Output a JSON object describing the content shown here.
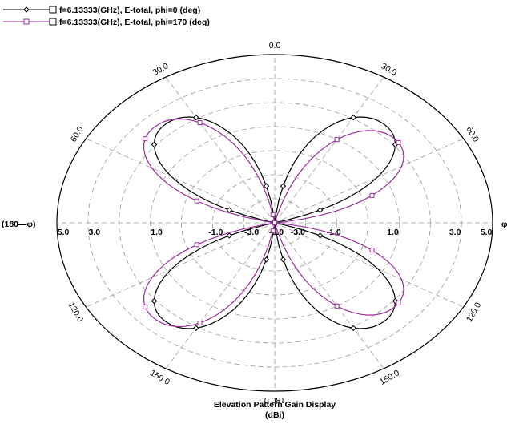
{
  "chart_data": {
    "type": "polar",
    "title": "Elevation Pattern Gain Display",
    "unit": "(dBi)",
    "radial_ticks": [
      "5.0",
      "3.0",
      "1.0",
      "-1.0",
      "-3.0",
      "-5.0"
    ],
    "angle_labels": [
      {
        "deg": 0,
        "text": "0.0"
      },
      {
        "deg": 30,
        "text": "30.0"
      },
      {
        "deg": 60,
        "text": "60.0"
      },
      {
        "deg": 120,
        "text": "120.0"
      },
      {
        "deg": 150,
        "text": "150.0"
      },
      {
        "deg": 180,
        "text": "180.0"
      },
      {
        "deg": -30,
        "text": "30.0"
      },
      {
        "deg": -60,
        "text": "60.0"
      },
      {
        "deg": -120,
        "text": "120.0"
      },
      {
        "deg": -150,
        "text": "150.0"
      }
    ],
    "left_axis_label": "(180—φ)",
    "right_axis_label": "φ",
    "series": [
      {
        "name": "f=6.13333(GHz), E-total, phi=0 (deg)",
        "color": "#000000",
        "marker": "diamond",
        "lobes": [
          {
            "center": 40,
            "peak": 3.8,
            "halfwidth": 35
          },
          {
            "center": 140,
            "peak": 3.8,
            "halfwidth": 35
          },
          {
            "center": -40,
            "peak": 3.8,
            "halfwidth": 35
          },
          {
            "center": -140,
            "peak": 3.8,
            "halfwidth": 35
          }
        ]
      },
      {
        "name": "f=6.13333(GHz), E-total, phi=170 (deg)",
        "color": "#9a2f9a",
        "marker": "square",
        "lobes": [
          {
            "center": 48,
            "peak": 3.4,
            "halfwidth": 35
          },
          {
            "center": 132,
            "peak": 3.4,
            "halfwidth": 35
          },
          {
            "center": -44,
            "peak": 4.1,
            "halfwidth": 35
          },
          {
            "center": -136,
            "peak": 4.1,
            "halfwidth": 35
          }
        ]
      }
    ],
    "rmin": -7,
    "rmax": 7,
    "grid": true
  }
}
